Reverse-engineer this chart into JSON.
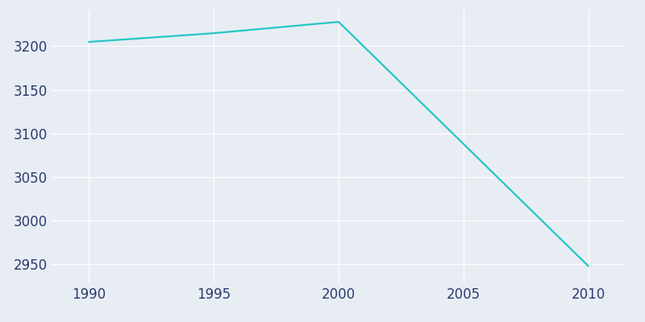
{
  "years": [
    1990,
    1995,
    2000,
    2010
  ],
  "population": [
    3205,
    3215,
    3228,
    2948
  ],
  "line_color": "#26C6C6",
  "background_color": "#E8EDF4",
  "grid_color": "#ffffff",
  "tick_label_color": "#2B3A6E",
  "xlim": [
    1988.5,
    2011.5
  ],
  "ylim": [
    2928,
    3242
  ],
  "xticks": [
    1990,
    1995,
    2000,
    2005,
    2010
  ],
  "yticks": [
    2950,
    3000,
    3050,
    3100,
    3150,
    3200
  ],
  "line_width": 1.6,
  "tick_labelsize": 12,
  "figsize": [
    8.0,
    4.0
  ],
  "dpi": 100
}
